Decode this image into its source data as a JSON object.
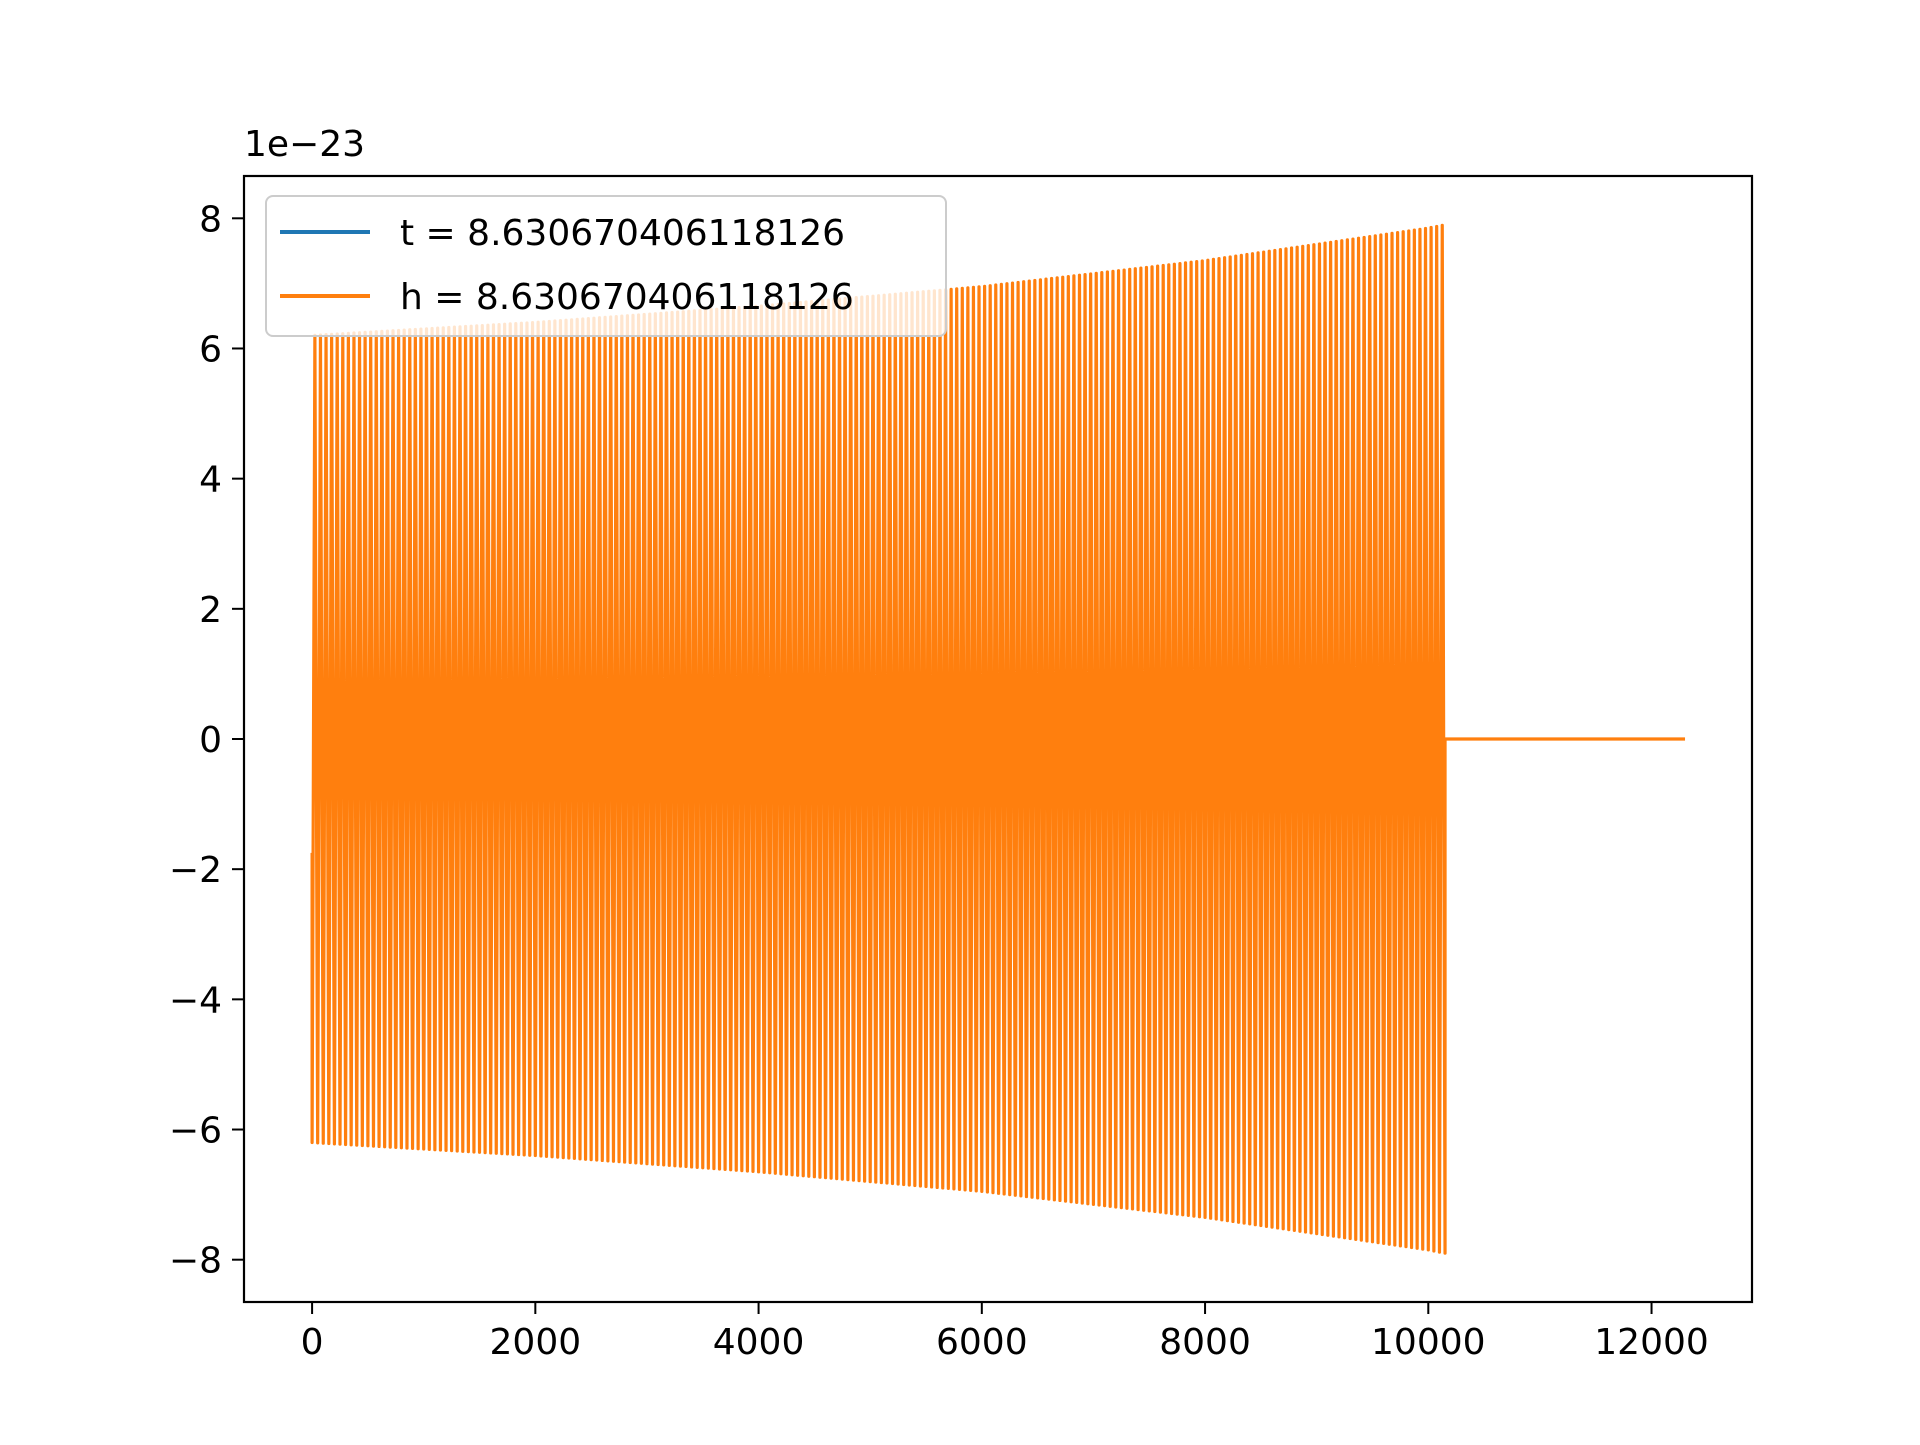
{
  "chart_data": {
    "type": "line",
    "title": "",
    "xlabel": "",
    "ylabel": "",
    "y_offset_text": "1e−23",
    "xlim": [
      -610,
      12900
    ],
    "ylim": [
      -8.65,
      8.65
    ],
    "x_ticks": [
      0,
      2000,
      4000,
      6000,
      8000,
      10000,
      12000
    ],
    "x_tick_labels": [
      "0",
      "2000",
      "4000",
      "6000",
      "8000",
      "10000",
      "12000"
    ],
    "y_ticks": [
      -8,
      -6,
      -4,
      -2,
      0,
      2,
      4,
      6,
      8
    ],
    "y_tick_labels": [
      "−8",
      "−6",
      "−4",
      "−2",
      "0",
      "2",
      "4",
      "6",
      "8"
    ],
    "grid": false,
    "legend_position": "upper left",
    "series": [
      {
        "name": "t = 8.630670406118126",
        "color": "#1f77b4",
        "description": "flat at zero",
        "x": [
          0,
          10
        ],
        "y": [
          0,
          0
        ]
      },
      {
        "name": "h = 8.630670406118126",
        "color": "#ff7f0e",
        "description": "oscillating signal with slowly growing envelope, then zero",
        "start_value": -1.75,
        "envelope_x": [
          0,
          2000,
          4000,
          6000,
          8000,
          10000,
          10150
        ],
        "envelope_amplitude": [
          6.2,
          6.4,
          6.65,
          6.95,
          7.35,
          7.85,
          7.9
        ],
        "oscillation_end_x": 10150,
        "flat_segment_x": [
          10150,
          12300
        ],
        "flat_segment_y": [
          0,
          0
        ]
      }
    ]
  }
}
